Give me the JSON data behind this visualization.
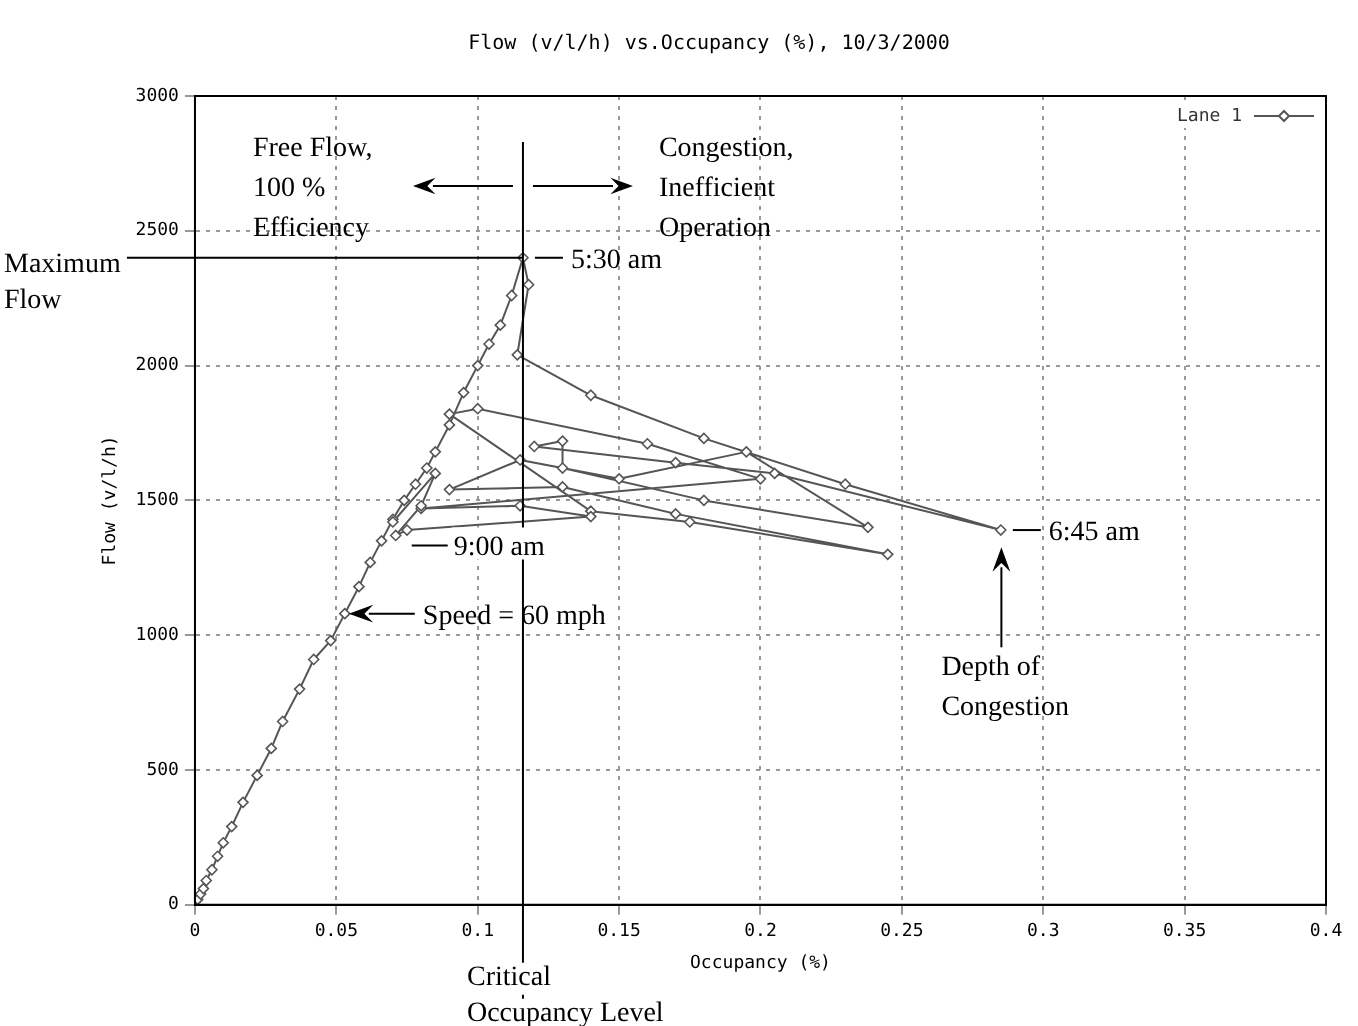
{
  "chart_data": {
    "type": "line",
    "title": "Flow (v/l/h) vs.Occupancy (%), 10/3/2000",
    "xlabel": "Occupancy (%)",
    "ylabel": "Flow (v/l/h)",
    "xlim": [
      0,
      0.4
    ],
    "xticks": [
      0,
      0.05,
      0.1,
      0.15,
      0.2,
      0.25,
      0.3,
      0.35,
      0.4
    ],
    "ylim": [
      0,
      3000
    ],
    "yticks": [
      0,
      500,
      1000,
      1500,
      2000,
      2500,
      3000
    ],
    "grid": true,
    "legend": "top right",
    "marker": "diamond",
    "line_style": "solid",
    "series": [
      {
        "name": "Lane 1",
        "color": "#555555",
        "x": [
          0.001,
          0.002,
          0.003,
          0.004,
          0.006,
          0.008,
          0.01,
          0.013,
          0.017,
          0.022,
          0.027,
          0.031,
          0.037,
          0.042,
          0.048,
          0.053,
          0.058,
          0.062,
          0.066,
          0.07,
          0.074,
          0.078,
          0.082,
          0.085,
          0.09,
          0.095,
          0.1,
          0.104,
          0.108,
          0.112,
          0.116,
          0.118,
          0.114,
          0.14,
          0.18,
          0.23,
          0.285,
          0.205,
          0.17,
          0.12,
          0.13,
          0.13,
          0.18,
          0.238,
          0.195,
          0.15,
          0.115,
          0.09,
          0.13,
          0.17,
          0.245,
          0.175,
          0.14,
          0.09,
          0.1,
          0.16,
          0.2,
          0.08,
          0.115,
          0.14,
          0.075,
          0.071,
          0.08,
          0.085,
          0.07
        ],
        "values": [
          20,
          40,
          60,
          90,
          130,
          180,
          230,
          290,
          380,
          480,
          580,
          680,
          800,
          910,
          980,
          1080,
          1180,
          1270,
          1350,
          1430,
          1500,
          1560,
          1620,
          1680,
          1780,
          1900,
          2000,
          2080,
          2150,
          2260,
          2400,
          2300,
          2040,
          1890,
          1730,
          1560,
          1390,
          1600,
          1640,
          1700,
          1720,
          1620,
          1500,
          1400,
          1680,
          1580,
          1650,
          1540,
          1550,
          1450,
          1300,
          1420,
          1460,
          1820,
          1840,
          1710,
          1580,
          1470,
          1480,
          1440,
          1390,
          1370,
          1480,
          1600,
          1420
        ]
      }
    ],
    "ref_lines": [
      {
        "axis": "x",
        "value": 0.116,
        "label": "Critical\nOccupancy Level"
      }
    ],
    "annotations": [
      "Free Flow,\n100 %\nEfficiency",
      "Congestion,\nInefficient\nOperation",
      {
        "text": "Maximum\nFlow",
        "x": 0.116,
        "y": 2400
      },
      {
        "text": "5:30 am",
        "x": 0.116,
        "y": 2400
      },
      {
        "text": "9:00 am",
        "x": 0.071,
        "y": 1370
      },
      {
        "text": "Speed = 60 mph",
        "x": 0.053,
        "y": 1080
      },
      {
        "text": "6:45 am",
        "x": 0.285,
        "y": 1390
      },
      "Depth of\nCongestion"
    ]
  }
}
